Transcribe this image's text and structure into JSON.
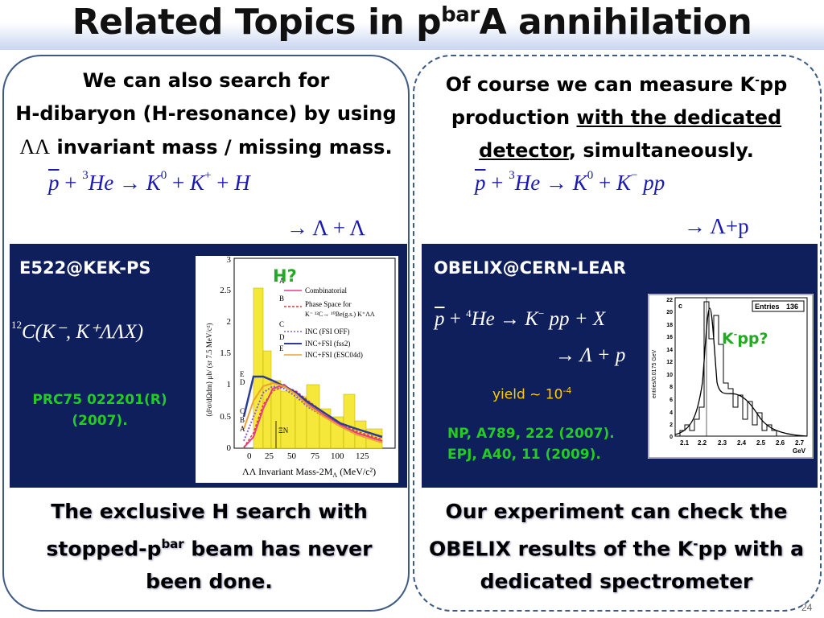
{
  "title": {
    "main": "Related Topics in p",
    "sup": "bar",
    "rest": "A annihilation"
  },
  "left": {
    "intro_line1": "We can also search for",
    "intro_line2": "H-dibaryon (H-resonance) by using",
    "intro_line3_symbol": "ΛΛ",
    "intro_line3_text": " invariant mass / missing mass.",
    "reaction": {
      "pbar": "p",
      "plus1": " + ",
      "he_sup": "3",
      "he": "He",
      "arrow": " → ",
      "k0": "K",
      "k0_sup": "0",
      "plus2": " + ",
      "kp": "K",
      "kp_sup": "+",
      "plus3": " + ",
      "h": "H"
    },
    "decay": "→ Λ + Λ",
    "box": {
      "title": "E522@KEK-PS",
      "reaction_pre_sup": "12",
      "reaction": "C(K⁻, K⁺ΛΛX)",
      "ref_line1": "PRC75 022201(R)",
      "ref_line2": "(2007).",
      "plot": {
        "annotation": "H?",
        "ylabel": "⟨d²σ/dΩdm⟩ μb/ (sr 7.5 MeV/c²)",
        "xlabel": "ΛΛ Invariant Mass-2M",
        "xlabel_sub": "Λ",
        "xlabel_unit": " (MeV/c²)",
        "xticks": [
          "0",
          "25",
          "50",
          "75",
          "100",
          "125"
        ],
        "yticks": [
          "0",
          "0.5",
          "1",
          "1.5",
          "2",
          "2.5",
          "3"
        ],
        "xi_label": "ΞN",
        "curve_letters": [
          "E",
          "D",
          "C",
          "B",
          "A"
        ],
        "legend": [
          {
            "letter": "A",
            "text": "Combinatorial",
            "color": "#e33c8c"
          },
          {
            "letter": "B",
            "text": "Phase Space for",
            "text2": "K⁻ ¹²C→ ¹⁰Be(g.s.) K⁺ΛΛ",
            "color": "#e03a3a"
          },
          {
            "letter": "C",
            "text": "INC (FSI OFF)",
            "color": "#8a5bd6"
          },
          {
            "letter": "D",
            "text": "INC+FSI (fss2)",
            "color": "#2b3b9a"
          },
          {
            "letter": "E",
            "text": "INC+FSI (ESC04d)",
            "color": "#f0a030"
          }
        ]
      }
    },
    "conclusion_line1": "The exclusive H search with",
    "conclusion_line2a": "stopped-p",
    "conclusion_line2_sup": "bar",
    "conclusion_line2b": " beam has never",
    "conclusion_line3": "been done."
  },
  "right": {
    "intro_line1a": "Of course we can measure K",
    "intro_line1_sup": "-",
    "intro_line1b": "pp",
    "intro_line2a": "production ",
    "intro_line2_u": "with the dedicated",
    "intro_line3_u": "detector",
    "intro_line3b": ", simultaneously.",
    "reaction": {
      "pbar": "p",
      "plus1": " + ",
      "he_sup": "3",
      "he": "He",
      "arrow": " → ",
      "k0": "K",
      "k0_sup": "0",
      "plus2": " + ",
      "km": "K",
      "km_sup": "−",
      "pp": " pp"
    },
    "decay": "→ Λ+p",
    "box": {
      "title": "OBELIX@CERN-LEAR",
      "reaction": {
        "pbar": "p",
        "plus1": " + ",
        "he_sup": "4",
        "he": "He",
        "arrow": " → ",
        "km": "K",
        "km_sup": "−",
        "rest": " pp + X"
      },
      "decay": "→ Λ + p",
      "yield_text": "yield ~ 10",
      "yield_sup": "-4",
      "ref_line1": "NP, A789, 222 (2007).",
      "ref_line2": "EPJ, A40, 11 (2009).",
      "plot": {
        "panel_label": "c",
        "entries_label": "Entries",
        "entries_value": "136",
        "annotation_base": "K",
        "annotation_sup": "-",
        "annotation_rest": "pp?",
        "ylabel": "entries/0.0175 GeV",
        "xunit": "GeV",
        "xticks": [
          "2.1",
          "2.2",
          "2.3",
          "2.4",
          "2.5",
          "2.6",
          "2.7"
        ],
        "yticks": [
          "0",
          "2",
          "4",
          "6",
          "8",
          "10",
          "12",
          "14",
          "16",
          "18",
          "20",
          "22"
        ]
      }
    },
    "conclusion_line1": "Our experiment can check the",
    "conclusion_line2a": "OBELIX results of the K",
    "conclusion_line2_sup": "-",
    "conclusion_line2b": "pp with a",
    "conclusion_line3": "dedicated spectrometer"
  },
  "page_number": "24"
}
